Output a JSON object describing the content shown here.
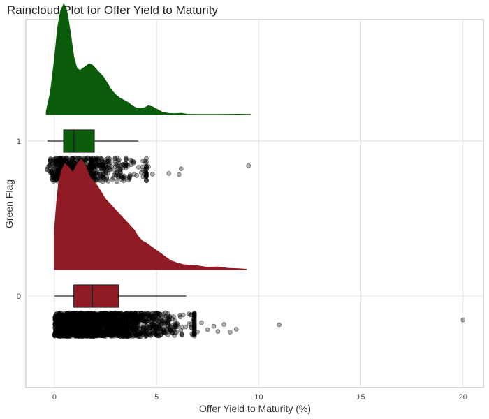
{
  "chart_data": {
    "type": "raincloud",
    "title": "Raincloud Plot for Offer Yield to Maturity",
    "xlabel": "Offer Yield to Maturity (%)",
    "ylabel": "Green Flag",
    "xlim": [
      -1.4,
      21.0
    ],
    "xticks": [
      0,
      5,
      10,
      15,
      20
    ],
    "categories": [
      "0",
      "1"
    ],
    "grid": true,
    "legend": "none",
    "series": [
      {
        "name": "1",
        "color": "#0a5c0a",
        "density": {
          "x": [
            -0.4,
            -0.2,
            0.0,
            0.15,
            0.3,
            0.45,
            0.55,
            0.65,
            0.8,
            0.95,
            1.1,
            1.25,
            1.4,
            1.55,
            1.7,
            1.85,
            2.0,
            2.2,
            2.4,
            2.6,
            2.8,
            3.0,
            3.2,
            3.4,
            3.6,
            3.8,
            4.0,
            4.2,
            4.4,
            4.6,
            4.8,
            5.0,
            5.3,
            5.6,
            5.9,
            6.2,
            6.5,
            7.0,
            8.0,
            9.0,
            9.6
          ],
          "y": [
            0.03,
            0.2,
            0.5,
            0.78,
            0.94,
            1.0,
            0.98,
            0.9,
            0.72,
            0.52,
            0.42,
            0.4,
            0.42,
            0.44,
            0.46,
            0.45,
            0.42,
            0.38,
            0.34,
            0.28,
            0.22,
            0.18,
            0.15,
            0.13,
            0.11,
            0.08,
            0.06,
            0.055,
            0.06,
            0.08,
            0.07,
            0.05,
            0.02,
            0.01,
            0.008,
            0.012,
            0.003,
            0.002,
            0.002,
            0.003,
            0.001
          ]
        },
        "box": {
          "whisker_low": -0.35,
          "q1": 0.45,
          "median": 0.95,
          "q3": 1.95,
          "whisker_high": 4.1
        },
        "outliers": [
          4.4,
          4.6,
          4.8,
          5.6,
          6.1,
          6.2,
          9.5
        ]
      },
      {
        "name": "0",
        "color": "#911b25",
        "density": {
          "x": [
            0.0,
            0.1,
            0.2,
            0.35,
            0.5,
            0.7,
            0.9,
            1.1,
            1.3,
            1.5,
            1.7,
            1.9,
            2.1,
            2.3,
            2.5,
            2.7,
            2.9,
            3.1,
            3.3,
            3.5,
            3.7,
            3.9,
            4.1,
            4.3,
            4.5,
            4.8,
            5.1,
            5.4,
            5.7,
            6.0,
            6.3,
            6.6,
            7.0,
            7.5,
            8.0,
            8.5,
            9.0,
            9.4
          ],
          "y": [
            0.35,
            0.6,
            0.78,
            0.9,
            0.96,
            0.93,
            0.88,
            0.95,
            1.0,
            0.95,
            0.85,
            0.8,
            0.76,
            0.7,
            0.64,
            0.6,
            0.56,
            0.52,
            0.48,
            0.44,
            0.4,
            0.36,
            0.3,
            0.26,
            0.24,
            0.2,
            0.16,
            0.12,
            0.08,
            0.06,
            0.045,
            0.04,
            0.035,
            0.02,
            0.025,
            0.012,
            0.008,
            0.003
          ]
        },
        "box": {
          "whisker_low": 0.0,
          "q1": 0.95,
          "median": 1.85,
          "q3": 3.15,
          "whisker_high": 6.45
        },
        "outliers": [
          6.6,
          6.8,
          7.0,
          7.2,
          7.5,
          7.8,
          8.0,
          8.3,
          8.6,
          8.9,
          11.0,
          20.0
        ]
      }
    ]
  }
}
